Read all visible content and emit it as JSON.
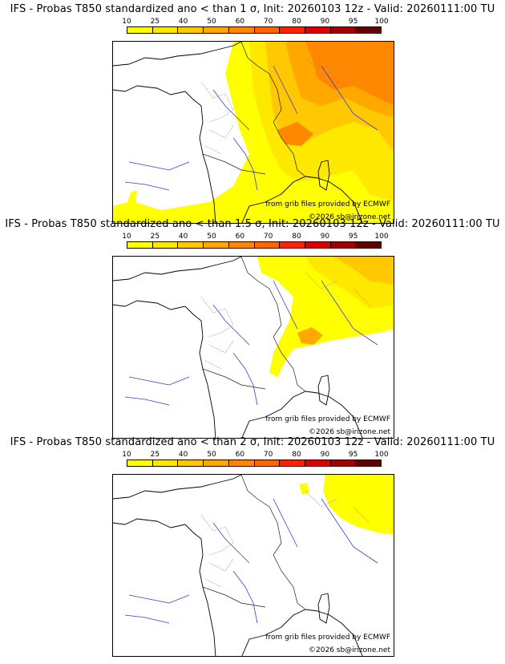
{
  "legend": {
    "ticks": [
      "10",
      "25",
      "40",
      "50",
      "60",
      "70",
      "80",
      "90",
      "95",
      "100"
    ],
    "colors": [
      "#ffff00",
      "#ffe800",
      "#ffc800",
      "#ffa800",
      "#ff8800",
      "#ff6600",
      "#ff2200",
      "#dd0000",
      "#a00000",
      "#600000"
    ]
  },
  "panels": [
    {
      "title": "IFS - Probas T850  standardized ano < than 1 σ, Init: 20260103 12z - Valid: 20260111:00 TU",
      "source_credit": "from grib files provided by ECMWF",
      "copyright": "©2026 sb@irizone.net"
    },
    {
      "title": "IFS - Probas T850  standardized ano < than 1.5 σ, Init: 20260103 12z - Valid: 20260111:00 TU",
      "source_credit": "from grib files provided by ECMWF",
      "copyright": "©2026 sb@irizone.net"
    },
    {
      "title": "IFS - Probas T850  standardized ano < than 2 σ, Init: 20260103 12z - Valid: 20260111:00 TU",
      "source_credit": "from grib files provided by ECMWF",
      "copyright": "©2026 sb@irizone.net"
    }
  ]
}
